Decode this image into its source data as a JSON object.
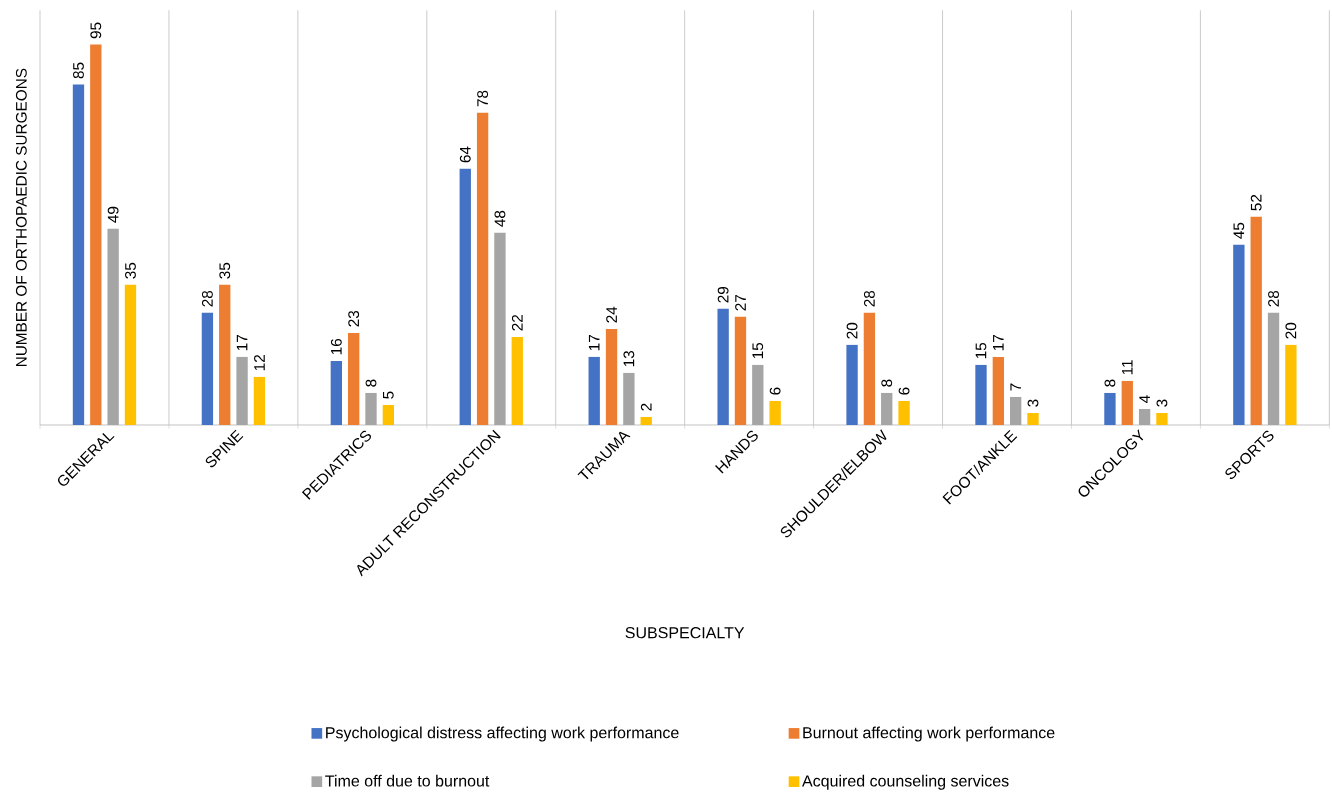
{
  "chart_data": {
    "type": "bar",
    "xlabel": "SUBSPECIALTY",
    "ylabel": "NUMBER OF ORTHOPAEDIC SURGEONS",
    "categories": [
      "GENERAL",
      "SPINE",
      "PEDIATRICS",
      "ADULT RECONSTRUCTION",
      "TRAUMA",
      "HANDS",
      "SHOULDER/ELBOW",
      "FOOT/ANKLE",
      "ONCOLOGY",
      "SPORTS"
    ],
    "series": [
      {
        "name": "Psychological distress affecting work performance",
        "color": "#4472c4",
        "values": [
          85,
          28,
          16,
          64,
          17,
          29,
          20,
          15,
          8,
          45
        ]
      },
      {
        "name": "Burnout affecting work performance",
        "color": "#ed7d31",
        "values": [
          95,
          35,
          23,
          78,
          24,
          27,
          28,
          17,
          11,
          52
        ]
      },
      {
        "name": "Time off due to burnout",
        "color": "#a5a5a5",
        "values": [
          49,
          17,
          8,
          48,
          13,
          15,
          8,
          7,
          4,
          28
        ]
      },
      {
        "name": "Acquired counseling services",
        "color": "#ffc000",
        "values": [
          35,
          12,
          5,
          22,
          2,
          6,
          6,
          3,
          3,
          20
        ]
      }
    ],
    "data_labels": true,
    "grid": "x",
    "legend": "bottom"
  }
}
